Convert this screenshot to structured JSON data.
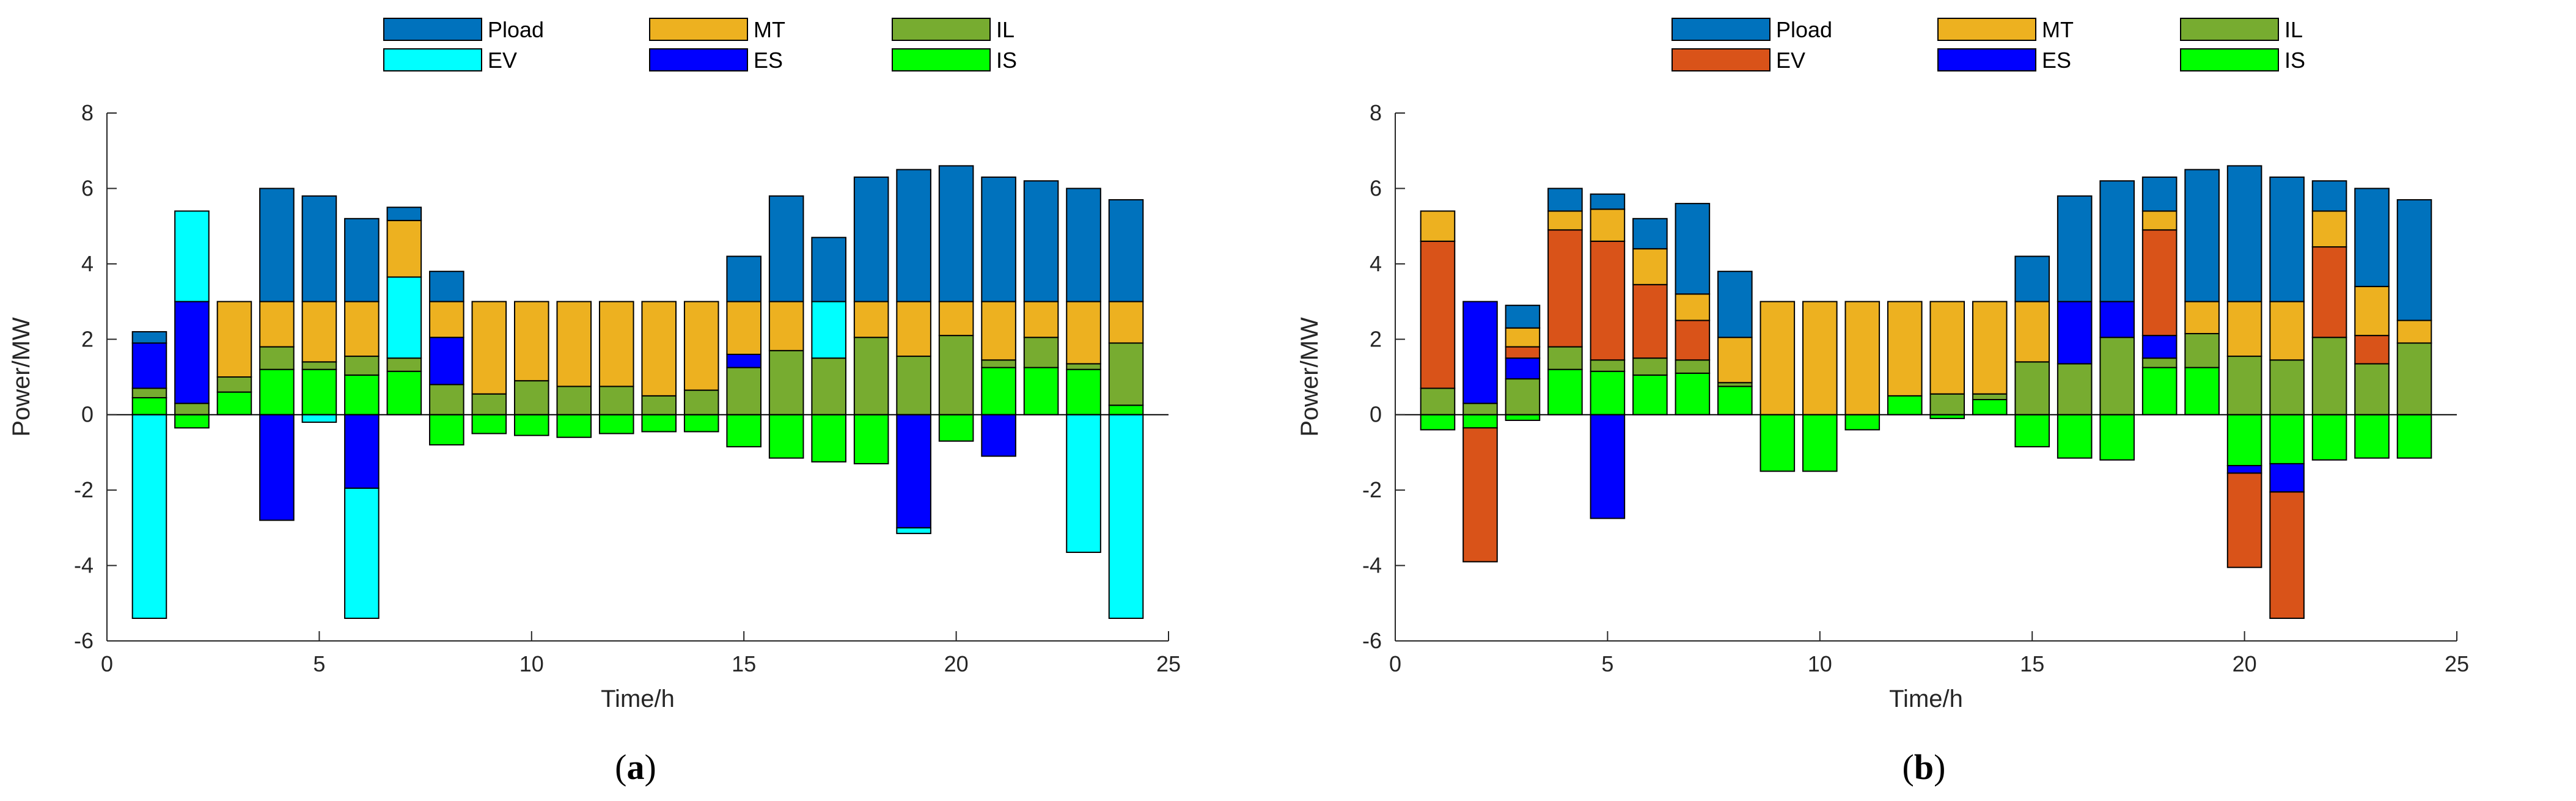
{
  "figure": {
    "legend_labels": [
      "Pload",
      "MT",
      "IL",
      "EV",
      "ES",
      "IS"
    ]
  },
  "chart_data": [
    {
      "type": "bar",
      "stacked": true,
      "caption_letter": "a",
      "xlabel": "Time/h",
      "ylabel": "Power/MW",
      "xlim": [
        0,
        25
      ],
      "ylim": [
        -6,
        8
      ],
      "xticks": [
        0,
        5,
        10,
        15,
        20,
        25
      ],
      "yticks": [
        -6,
        -4,
        -2,
        0,
        2,
        4,
        6,
        8
      ],
      "grid": false,
      "legend_position": "top",
      "x": [
        1,
        2,
        3,
        4,
        5,
        6,
        7,
        8,
        9,
        10,
        11,
        12,
        13,
        14,
        15,
        16,
        17,
        18,
        19,
        20,
        21,
        22,
        23,
        24
      ],
      "series": [
        {
          "name": "IS",
          "color": "#00ff00",
          "values": [
            0.45,
            -0.35,
            0.6,
            1.2,
            1.2,
            1.05,
            1.15,
            -0.8,
            -0.5,
            -0.55,
            -0.6,
            -0.5,
            -0.45,
            -0.45,
            -0.85,
            -1.15,
            -1.25,
            -1.3,
            0,
            -0.7,
            1.25,
            1.25,
            1.2,
            0.25
          ]
        },
        {
          "name": "IL",
          "color": "#77ac30",
          "values": [
            0.25,
            0.3,
            0.4,
            0.6,
            0.2,
            0.5,
            0.35,
            0.8,
            0.55,
            0.9,
            0.75,
            0.75,
            0.5,
            0.65,
            1.25,
            1.7,
            1.5,
            2.05,
            1.55,
            2.1,
            0.2,
            0.8,
            0.15,
            1.65
          ]
        },
        {
          "name": "ES",
          "color": "#0000ff",
          "values": [
            1.2,
            2.7,
            0,
            -2.8,
            0,
            -1.95,
            0,
            1.25,
            0,
            0,
            0,
            0,
            0,
            0,
            0.35,
            0,
            0,
            0,
            -3.0,
            0,
            -1.1,
            0,
            0,
            0
          ]
        },
        {
          "name": "EV",
          "color": "#00ffff",
          "values": [
            -5.4,
            2.4,
            0,
            0,
            -0.2,
            -3.45,
            2.15,
            0,
            0,
            0,
            0,
            0,
            0,
            0,
            0,
            0,
            1.5,
            0,
            -0.15,
            0,
            0,
            0,
            -3.65,
            -5.4
          ]
        },
        {
          "name": "MT",
          "color": "#edb120",
          "values": [
            0,
            0,
            2.0,
            1.2,
            1.6,
            1.45,
            1.5,
            0.95,
            2.45,
            2.1,
            2.25,
            2.25,
            2.5,
            2.35,
            1.4,
            1.3,
            0,
            0.95,
            1.45,
            0.9,
            1.55,
            0.95,
            1.65,
            1.1
          ]
        },
        {
          "name": "Pload",
          "color": "#0072bd",
          "values": [
            0.3,
            0,
            0,
            3.0,
            2.8,
            2.2,
            0.35,
            0.8,
            0,
            0,
            0,
            0,
            0,
            0,
            1.2,
            2.8,
            1.7,
            3.3,
            3.5,
            3.6,
            3.3,
            3.2,
            3.0,
            2.7
          ]
        }
      ]
    },
    {
      "type": "bar",
      "stacked": true,
      "caption_letter": "b",
      "xlabel": "Time/h",
      "ylabel": "Power/MW",
      "xlim": [
        0,
        25
      ],
      "ylim": [
        -6,
        8
      ],
      "xticks": [
        0,
        5,
        10,
        15,
        20,
        25
      ],
      "yticks": [
        -6,
        -4,
        -2,
        0,
        2,
        4,
        6,
        8
      ],
      "grid": false,
      "legend_position": "top",
      "x": [
        1,
        2,
        3,
        4,
        5,
        6,
        7,
        8,
        9,
        10,
        11,
        12,
        13,
        14,
        15,
        16,
        17,
        18,
        19,
        20,
        21,
        22,
        23,
        24
      ],
      "series": [
        {
          "name": "IS",
          "color": "#00ff00",
          "values": [
            -0.4,
            -0.35,
            -0.15,
            1.2,
            1.15,
            1.05,
            1.1,
            0.75,
            -1.5,
            -1.5,
            -0.4,
            0.5,
            -0.1,
            0.4,
            -0.85,
            -1.15,
            -1.2,
            1.25,
            1.25,
            -1.35,
            -1.3,
            -1.2,
            -1.15,
            -1.15
          ]
        },
        {
          "name": "IL",
          "color": "#77ac30",
          "values": [
            0.7,
            0.3,
            0.95,
            0.6,
            0.3,
            0.45,
            0.35,
            0.1,
            0,
            0,
            0,
            0,
            0.55,
            0.15,
            1.4,
            1.35,
            2.05,
            0.25,
            0.9,
            1.55,
            1.45,
            2.05,
            1.35,
            1.9
          ]
        },
        {
          "name": "ES",
          "color": "#0000ff",
          "values": [
            0,
            2.7,
            0.55,
            0,
            -2.75,
            0,
            0,
            0,
            0,
            0,
            0,
            0,
            0,
            0,
            0,
            1.65,
            0.95,
            0.6,
            0,
            -0.2,
            -0.75,
            0,
            0,
            0
          ]
        },
        {
          "name": "EV",
          "color": "#d95319",
          "values": [
            3.9,
            -3.55,
            0.3,
            3.1,
            3.15,
            1.95,
            1.05,
            0,
            0,
            0,
            0,
            0,
            0,
            0,
            0,
            0,
            0,
            2.8,
            0,
            -2.5,
            -3.35,
            2.4,
            0.75,
            0
          ]
        },
        {
          "name": "MT",
          "color": "#edb120",
          "values": [
            0.8,
            0,
            0.5,
            0.5,
            0.85,
            0.95,
            0.7,
            1.2,
            3.0,
            3.0,
            3.0,
            2.5,
            2.45,
            2.45,
            1.6,
            0,
            0,
            0.5,
            0.85,
            1.45,
            1.55,
            0.95,
            1.3,
            0.6
          ]
        },
        {
          "name": "Pload",
          "color": "#0072bd",
          "values": [
            0,
            0,
            0.6,
            0.6,
            0.4,
            0.8,
            2.4,
            1.75,
            0,
            0,
            0,
            0,
            0,
            0,
            1.2,
            2.8,
            3.2,
            0.9,
            3.5,
            3.6,
            3.3,
            0.8,
            2.6,
            3.2
          ]
        }
      ]
    }
  ]
}
